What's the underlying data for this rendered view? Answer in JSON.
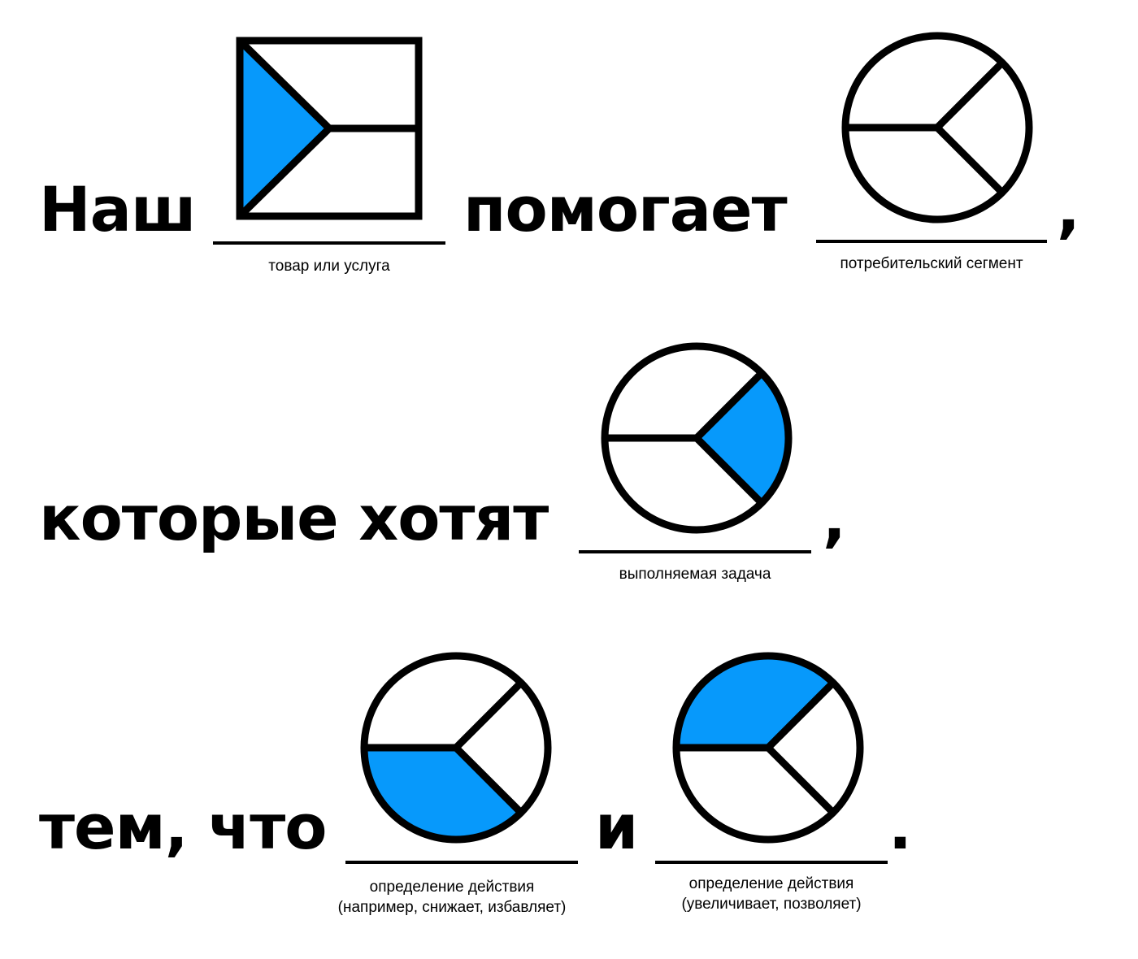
{
  "colors": {
    "fill": "#0799FB",
    "stroke": "#000000",
    "background": "#ffffff"
  },
  "line1": {
    "word_start": "Наш",
    "word_mid": "помогает",
    "comma": ",",
    "caption_product": "товар или услуга",
    "caption_segment": "потребительский сегмент",
    "product_icon": "value-proposition-square-icon",
    "segment_icon": "customer-profile-circle-icon"
  },
  "line2": {
    "word_start": "которые хотят",
    "comma": ",",
    "caption_task": "выполняемая задача",
    "task_icon": "customer-jobs-circle-icon"
  },
  "line3": {
    "word_start": "тем, что",
    "word_and": "и",
    "period": ".",
    "caption_pains": [
      "определение действия",
      "(например, снижает, избавляет)"
    ],
    "caption_gains": [
      "определение действия",
      "(увеличивает, позволяет)"
    ],
    "pains_icon": "customer-pains-circle-icon",
    "gains_icon": "customer-gains-circle-icon"
  }
}
